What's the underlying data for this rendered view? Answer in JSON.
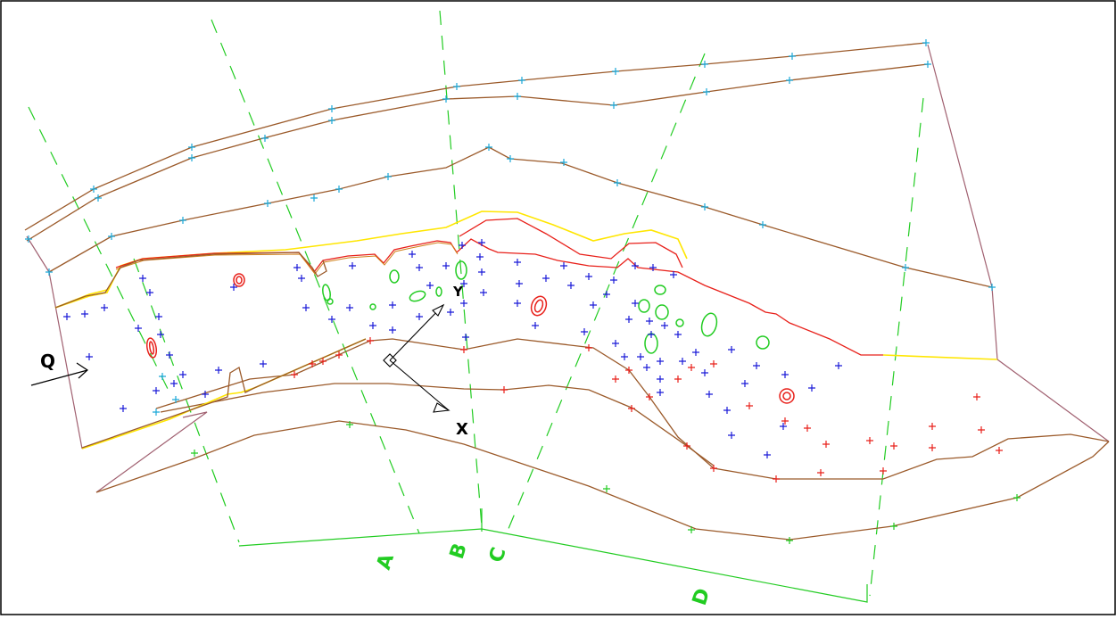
{
  "labels": {
    "flow": "Q",
    "axis_y": "Y",
    "axis_x": "X",
    "section_a": "A",
    "section_b": "B",
    "section_c": "C",
    "section_d": "D"
  },
  "colors": {
    "contour": "#9b5a2a",
    "bank_yellow": "#ffe600",
    "bank_red": "#e8201a",
    "section_line": "#22cc22",
    "marker_cyan": "#1aa8d8",
    "marker_blue": "#1a1ad8",
    "marker_red": "#e8201a",
    "obstacle_green": "#22cc22",
    "obstacle_red": "#e8201a",
    "boundary_mauve": "#a06070",
    "axis_black": "#000000"
  }
}
